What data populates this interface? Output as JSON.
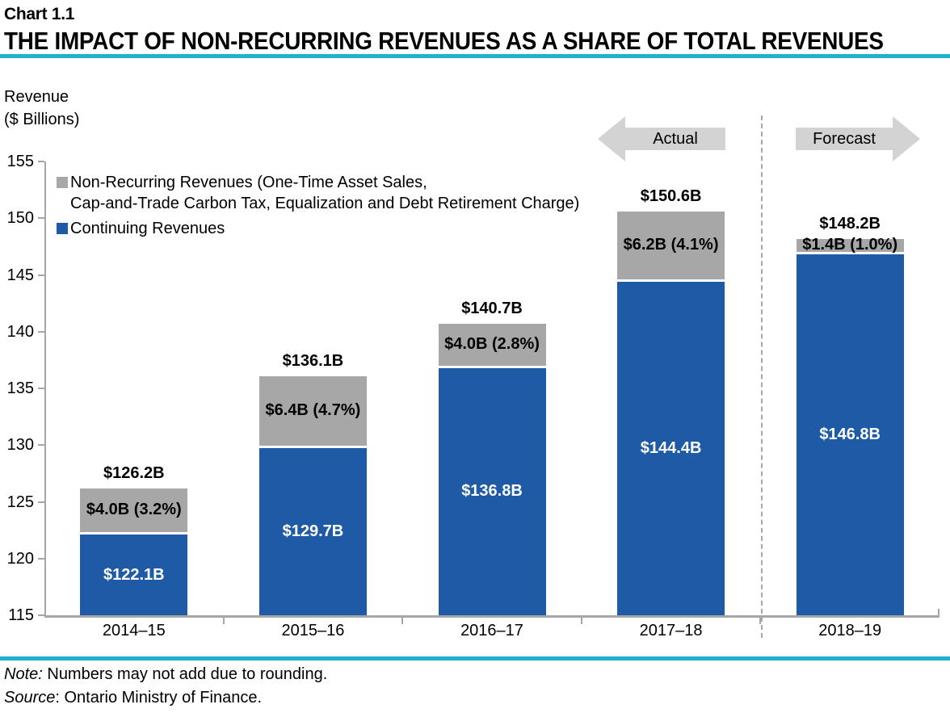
{
  "header": {
    "chart_label": "Chart 1.1",
    "title": "THE IMPACT OF NON-RECURRING REVENUES AS A SHARE OF TOTAL REVENUES"
  },
  "axis_title": {
    "line1": "Revenue",
    "line2": "($ Billions)"
  },
  "legend": {
    "nonrecurring": {
      "line1": "Non-Recurring Revenues (One-Time Asset Sales,",
      "line2": "Cap-and-Trade Carbon Tax, Equalization and Debt Retirement Charge)"
    },
    "continuing": {
      "label": "Continuing Revenues"
    }
  },
  "annotations": {
    "actual_label": "Actual",
    "forecast_label": "Forecast"
  },
  "colors": {
    "accent_cyan": "#1FB0CE",
    "bar_blue": "#1F5AA6",
    "bar_gray": "#A7A7A7",
    "arrow_gray": "#D3D3D3",
    "axis_gray": "#A6A6A6",
    "blue_label_text": "#FFFFFF"
  },
  "chart_data": {
    "type": "bar",
    "stacked": true,
    "title": "THE IMPACT OF NON-RECURRING REVENUES AS A SHARE OF TOTAL REVENUES",
    "ylabel": "Revenue ($ Billions)",
    "ylim": [
      115,
      155
    ],
    "yticks": [
      155,
      150,
      145,
      140,
      135,
      130,
      125,
      120,
      115
    ],
    "grid": false,
    "legend_position": "top-left",
    "categories": [
      "2014–15",
      "2015–16",
      "2016–17",
      "2017–18",
      "2018–19"
    ],
    "series": [
      {
        "name": "Continuing Revenues",
        "color": "#1F5AA6",
        "values": [
          122.1,
          129.7,
          136.8,
          144.4,
          146.8
        ],
        "labels": [
          "$122.1B",
          "$129.7B",
          "$136.8B",
          "$144.4B",
          "$146.8B"
        ]
      },
      {
        "name": "Non-Recurring Revenues (One-Time Asset Sales, Cap-and-Trade Carbon Tax, Equalization and Debt Retirement Charge)",
        "color": "#A7A7A7",
        "values": [
          4.0,
          6.4,
          4.0,
          6.2,
          1.4
        ],
        "labels": [
          "$4.0B (3.2%)",
          "$6.4B (4.7%)",
          "$4.0B (2.8%)",
          "$6.2B (4.1%)",
          "$1.4B (1.0%)"
        ]
      }
    ],
    "totals": [
      126.2,
      136.1,
      140.7,
      150.6,
      148.2
    ],
    "total_labels": [
      "$126.2B",
      "$136.1B",
      "$140.7B",
      "$150.6B",
      "$148.2B"
    ],
    "actual_categories": [
      "2014–15",
      "2015–16",
      "2016–17",
      "2017–18"
    ],
    "forecast_categories": [
      "2018–19"
    ]
  },
  "footer": {
    "note_prefix": "Note:",
    "note_rest": " Numbers may not add due to rounding.",
    "source_prefix": "Source",
    "source_rest": ": Ontario Ministry of Finance."
  }
}
